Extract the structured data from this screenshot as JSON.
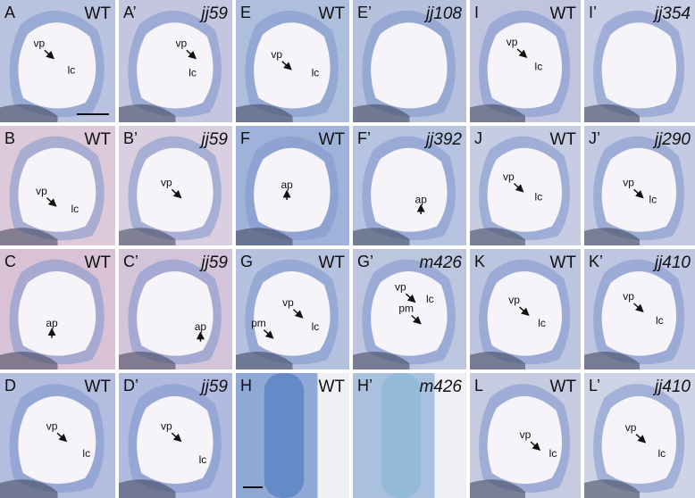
{
  "panels": [
    {
      "letter": "A",
      "genotype": "WT",
      "annotations": [
        "vp",
        "lc"
      ]
    },
    {
      "letter": "A’",
      "genotype": "jj59",
      "annotations": [
        "vp",
        "lc"
      ]
    },
    {
      "letter": "E",
      "genotype": "WT",
      "annotations": [
        "vp",
        "lc"
      ]
    },
    {
      "letter": "E’",
      "genotype": "jj108",
      "annotations": []
    },
    {
      "letter": "I",
      "genotype": "WT",
      "annotations": [
        "vp",
        "lc"
      ]
    },
    {
      "letter": "I’",
      "genotype": "jj354",
      "annotations": []
    },
    {
      "letter": "B",
      "genotype": "WT",
      "annotations": [
        "vp",
        "lc"
      ]
    },
    {
      "letter": "B’",
      "genotype": "jj59",
      "annotations": [
        "vp"
      ]
    },
    {
      "letter": "F",
      "genotype": "WT",
      "annotations": [
        "ap"
      ]
    },
    {
      "letter": "F’",
      "genotype": "jj392",
      "annotations": [
        "ap"
      ]
    },
    {
      "letter": "J",
      "genotype": "WT",
      "annotations": [
        "vp",
        "lc"
      ]
    },
    {
      "letter": "J’",
      "genotype": "jj290",
      "annotations": [
        "vp",
        "lc"
      ]
    },
    {
      "letter": "C",
      "genotype": "WT",
      "annotations": [
        "ap"
      ]
    },
    {
      "letter": "C’",
      "genotype": "jj59",
      "annotations": [
        "ap"
      ]
    },
    {
      "letter": "G",
      "genotype": "WT",
      "annotations": [
        "pm",
        "vp",
        "lc"
      ]
    },
    {
      "letter": "G’",
      "genotype": "m426",
      "annotations": [
        "vp",
        "pm",
        "lc"
      ]
    },
    {
      "letter": "K",
      "genotype": "WT",
      "annotations": [
        "vp",
        "lc"
      ]
    },
    {
      "letter": "K’",
      "genotype": "jj410",
      "annotations": [
        "vp",
        "lc"
      ]
    },
    {
      "letter": "D",
      "genotype": "WT",
      "annotations": [
        "vp",
        "lc"
      ]
    },
    {
      "letter": "D’",
      "genotype": "jj59",
      "annotations": [
        "vp",
        "lc"
      ]
    },
    {
      "letter": "H",
      "genotype": "WT",
      "annotations": []
    },
    {
      "letter": "H’",
      "genotype": "m426",
      "annotations": []
    },
    {
      "letter": "L",
      "genotype": "WT",
      "annotations": [
        "vp",
        "lc"
      ]
    },
    {
      "letter": "L’",
      "genotype": "jj410",
      "annotations": [
        "vp",
        "lc"
      ]
    }
  ]
}
